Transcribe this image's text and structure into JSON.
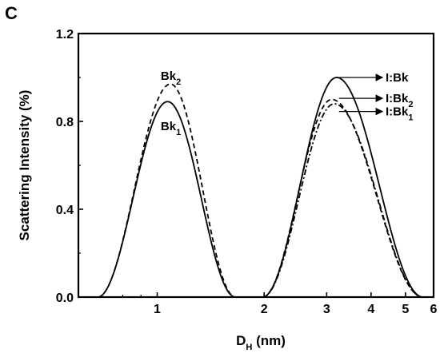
{
  "panel_label": "C",
  "chart_data": {
    "type": "line",
    "xlabel": {
      "main": "D",
      "sub": "H",
      "unit": " (nm)"
    },
    "ylabel": "Scattering Intensity (%)",
    "x_scale": "log",
    "xlim": [
      0.6,
      6
    ],
    "ylim": [
      0,
      1.2
    ],
    "x_ticks": [
      {
        "value": 1,
        "label": "1"
      },
      {
        "value": 2,
        "label": "2"
      },
      {
        "value": 3,
        "label": "3"
      },
      {
        "value": 4,
        "label": "4"
      },
      {
        "value": 5,
        "label": "5"
      },
      {
        "value": 6,
        "label": "6"
      }
    ],
    "y_ticks": [
      {
        "value": 0,
        "label": "0.0"
      },
      {
        "value": 0.4,
        "label": "0.4"
      },
      {
        "value": 0.8,
        "label": "0.8"
      },
      {
        "value": 1.2,
        "label": "1.2"
      }
    ],
    "grid": false,
    "series": [
      {
        "style": "solid",
        "color": "#000000",
        "peaks": [
          {
            "center": 1.07,
            "height": 0.89,
            "x_start": 0.68,
            "x_end": 1.66
          },
          {
            "center": 3.2,
            "height": 1.0,
            "x_start": 1.98,
            "x_end": 5.6
          }
        ]
      },
      {
        "style": "dashed",
        "color": "#000000",
        "peaks": [
          {
            "center": 1.09,
            "height": 0.97,
            "x_start": 0.68,
            "x_end": 1.66
          },
          {
            "center": 3.1,
            "height": 0.9,
            "x_start": 1.98,
            "x_end": 5.6
          }
        ]
      },
      {
        "style": "dashdot",
        "color": "#000000",
        "peaks": [
          {
            "center": 3.15,
            "height": 0.88,
            "x_start": 1.98,
            "x_end": 5.6
          }
        ]
      }
    ],
    "annotations": [
      {
        "base": "Bk",
        "sub": "2",
        "x": 1.07,
        "y": 0.99,
        "arrow": false
      },
      {
        "base": "Bk",
        "sub": "1",
        "x": 1.07,
        "y": 0.76,
        "arrow": false
      },
      {
        "base": "I:Bk",
        "sub": "",
        "x": 4.35,
        "y": 1.0,
        "arrow": true,
        "arrow_from": [
          3.25,
          1.0
        ]
      },
      {
        "base": "I:Bk",
        "sub": "2",
        "x": 4.35,
        "y": 0.905,
        "arrow": true,
        "arrow_from": [
          3.25,
          0.905
        ]
      },
      {
        "base": "I:Bk",
        "sub": "1",
        "x": 4.35,
        "y": 0.845,
        "arrow": true,
        "arrow_from": [
          3.25,
          0.845
        ]
      }
    ]
  }
}
